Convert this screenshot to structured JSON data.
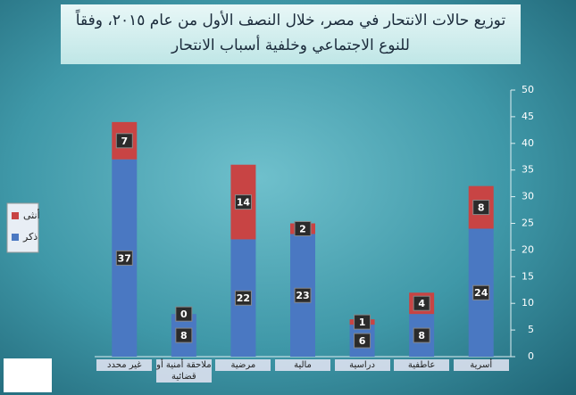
{
  "chart_data": {
    "type": "stacked-bar",
    "title": "توزيع حالات الانتحار في مصر، خلال النصف الأول من عام ٢٠١٥، وفقاً للنوع الاجتماعي وخلفية أسباب الانتحار",
    "categories": [
      "غير محدد",
      "ملاحقة أمنية أو قضائية",
      "مرضية",
      "مالية",
      "دراسية",
      "عاطفية",
      "أسرية"
    ],
    "series": [
      {
        "name": "ذكر",
        "color": "#4a78c2",
        "values": [
          37,
          8,
          22,
          23,
          6,
          8,
          24
        ]
      },
      {
        "name": "أنثى",
        "color": "#c84444",
        "values": [
          7,
          0,
          14,
          2,
          1,
          4,
          8
        ]
      }
    ],
    "ylim": [
      0,
      50
    ],
    "yticks": [
      0,
      5,
      10,
      15,
      20,
      25,
      30,
      35,
      40,
      45,
      50
    ]
  }
}
